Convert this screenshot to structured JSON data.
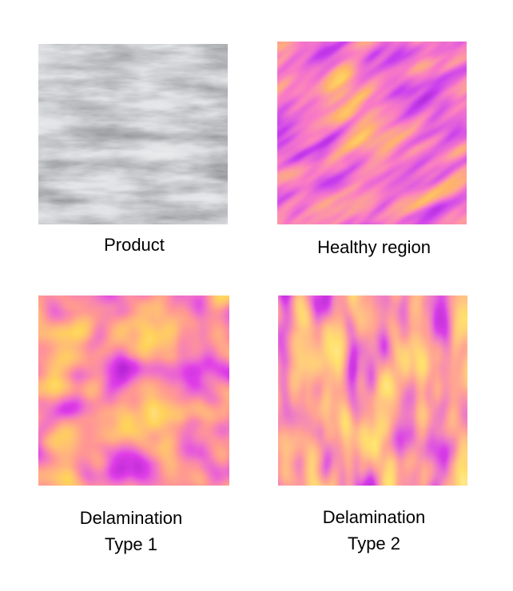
{
  "panels": [
    {
      "caption": [
        "Product"
      ]
    },
    {
      "caption": [
        "Healthy region"
      ]
    },
    {
      "caption": [
        "Delamination",
        "Type 1"
      ]
    },
    {
      "caption": [
        "Delamination",
        "Type 2"
      ]
    }
  ]
}
